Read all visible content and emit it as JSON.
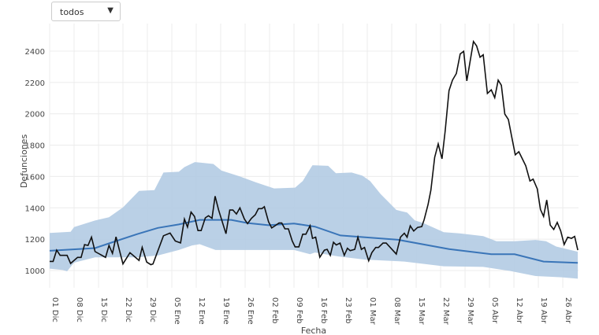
{
  "filter": {
    "selected": "todos",
    "arrow": "▼"
  },
  "chart_data": {
    "type": "line",
    "title": "",
    "xlabel": "Fecha",
    "ylabel": "Defunciones",
    "ylim": [
      900,
      2500
    ],
    "yticks": [
      1000,
      1200,
      1400,
      1600,
      1800,
      2000,
      2200,
      2400
    ],
    "x_unit": "days since 01 Dic",
    "xlim": [
      0,
      151.5
    ],
    "xticks": [
      {
        "day": 0,
        "label": "01 Dic"
      },
      {
        "day": 7,
        "label": "08 Dic"
      },
      {
        "day": 14,
        "label": "15 Dic"
      },
      {
        "day": 21,
        "label": "22 Dic"
      },
      {
        "day": 28,
        "label": "29 Dic"
      },
      {
        "day": 35,
        "label": "05 Ene"
      },
      {
        "day": 42,
        "label": "12 Ene"
      },
      {
        "day": 49,
        "label": "19 Ene"
      },
      {
        "day": 56,
        "label": "26 Ene"
      },
      {
        "day": 63,
        "label": "02 Feb"
      },
      {
        "day": 70,
        "label": "09 Feb"
      },
      {
        "day": 77,
        "label": "16 Feb"
      },
      {
        "day": 84,
        "label": "23 Feb"
      },
      {
        "day": 91,
        "label": "01 Mar"
      },
      {
        "day": 98,
        "label": "08 Mar"
      },
      {
        "day": 105,
        "label": "15 Mar"
      },
      {
        "day": 112,
        "label": "22 Mar"
      },
      {
        "day": 119,
        "label": "29 Mar"
      },
      {
        "day": 126,
        "label": "05 Abr"
      },
      {
        "day": 133,
        "label": "12 Abr"
      },
      {
        "day": 140,
        "label": "19 Abr"
      },
      {
        "day": 147,
        "label": "26 Abr"
      }
    ],
    "grid": true,
    "colors": {
      "observed": "#111111",
      "expected": "#3a75b8",
      "band": "#b3cbe3"
    },
    "series": [
      {
        "name": "observed",
        "points": [
          [
            0,
            1058
          ],
          [
            1,
            1058
          ],
          [
            2,
            1130
          ],
          [
            3,
            1097
          ],
          [
            5,
            1097
          ],
          [
            6,
            1045
          ],
          [
            8,
            1084
          ],
          [
            9,
            1084
          ],
          [
            10,
            1165
          ],
          [
            11,
            1160
          ],
          [
            12,
            1213
          ],
          [
            13,
            1121
          ],
          [
            16,
            1084
          ],
          [
            17,
            1160
          ],
          [
            18,
            1109
          ],
          [
            19,
            1215
          ],
          [
            21,
            1042
          ],
          [
            23,
            1114
          ],
          [
            25,
            1076
          ],
          [
            25.6,
            1064
          ],
          [
            26.5,
            1148
          ],
          [
            27.8,
            1054
          ],
          [
            29,
            1037
          ],
          [
            29.6,
            1042
          ],
          [
            32.6,
            1222
          ],
          [
            34.5,
            1239
          ],
          [
            36,
            1188
          ],
          [
            37.5,
            1176
          ],
          [
            38.6,
            1328
          ],
          [
            39.5,
            1277
          ],
          [
            40.5,
            1373
          ],
          [
            41.5,
            1345
          ],
          [
            42.5,
            1255
          ],
          [
            43.4,
            1255
          ],
          [
            44.6,
            1336
          ],
          [
            45.5,
            1350
          ],
          [
            46.5,
            1333
          ],
          [
            47.4,
            1474
          ],
          [
            48.4,
            1386
          ],
          [
            50.5,
            1235
          ],
          [
            51.6,
            1386
          ],
          [
            52.5,
            1386
          ],
          [
            53.5,
            1361
          ],
          [
            54.5,
            1400
          ],
          [
            55.8,
            1328
          ],
          [
            56.7,
            1299
          ],
          [
            57.8,
            1333
          ],
          [
            58.9,
            1356
          ],
          [
            59.8,
            1395
          ],
          [
            60.8,
            1395
          ],
          [
            61.5,
            1407
          ],
          [
            62.7,
            1311
          ],
          [
            63.6,
            1272
          ],
          [
            64.6,
            1286
          ],
          [
            65.7,
            1303
          ],
          [
            66.5,
            1303
          ],
          [
            67.4,
            1266
          ],
          [
            68.4,
            1266
          ],
          [
            69.5,
            1188
          ],
          [
            70.3,
            1151
          ],
          [
            71.4,
            1151
          ],
          [
            72.5,
            1232
          ],
          [
            73.4,
            1232
          ],
          [
            74.6,
            1286
          ],
          [
            75.3,
            1205
          ],
          [
            76.2,
            1213
          ],
          [
            77.4,
            1085
          ],
          [
            78.7,
            1130
          ],
          [
            79.5,
            1135
          ],
          [
            80.4,
            1097
          ],
          [
            81.3,
            1180
          ],
          [
            82.1,
            1163
          ],
          [
            83.2,
            1175
          ],
          [
            84.4,
            1097
          ],
          [
            85.3,
            1142
          ],
          [
            86.1,
            1127
          ],
          [
            87.4,
            1135
          ],
          [
            88.3,
            1213
          ],
          [
            89.3,
            1135
          ],
          [
            90.2,
            1147
          ],
          [
            91.4,
            1062
          ],
          [
            92.3,
            1114
          ],
          [
            93.4,
            1147
          ],
          [
            94.2,
            1147
          ],
          [
            95.5,
            1175
          ],
          [
            96.4,
            1175
          ],
          [
            99.3,
            1105
          ],
          [
            100.5,
            1213
          ],
          [
            101.6,
            1238
          ],
          [
            102.4,
            1213
          ],
          [
            103.3,
            1285
          ],
          [
            104.3,
            1252
          ],
          [
            105.4,
            1275
          ],
          [
            106.6,
            1280
          ],
          [
            107.3,
            1325
          ],
          [
            108.4,
            1421
          ],
          [
            109.2,
            1513
          ],
          [
            110.3,
            1722
          ],
          [
            111.3,
            1808
          ],
          [
            112.4,
            1713
          ],
          [
            113.3,
            1889
          ],
          [
            114.4,
            2148
          ],
          [
            115.4,
            2215
          ],
          [
            116.5,
            2257
          ],
          [
            117.6,
            2382
          ],
          [
            118.6,
            2399
          ],
          [
            119.5,
            2210
          ],
          [
            121.4,
            2461
          ],
          [
            122.3,
            2433
          ],
          [
            123.3,
            2361
          ],
          [
            124.2,
            2377
          ],
          [
            125.4,
            2130
          ],
          [
            126.5,
            2153
          ],
          [
            127.5,
            2103
          ],
          [
            128.5,
            2215
          ],
          [
            129.4,
            2182
          ],
          [
            130.4,
            1998
          ],
          [
            131.4,
            1964
          ],
          [
            132.5,
            1839
          ],
          [
            133.4,
            1738
          ],
          [
            134.4,
            1758
          ],
          [
            135.4,
            1713
          ],
          [
            136.4,
            1668
          ],
          [
            137.6,
            1571
          ],
          [
            138.5,
            1583
          ],
          [
            139.7,
            1521
          ],
          [
            140.6,
            1390
          ],
          [
            141.5,
            1345
          ],
          [
            142.4,
            1450
          ],
          [
            143.4,
            1290
          ],
          [
            144.4,
            1262
          ],
          [
            145.4,
            1307
          ],
          [
            146.4,
            1253
          ],
          [
            147.4,
            1166
          ],
          [
            148.4,
            1213
          ],
          [
            149.5,
            1205
          ],
          [
            150.4,
            1218
          ],
          [
            151.3,
            1130
          ]
        ]
      },
      {
        "name": "expected",
        "points": [
          [
            0,
            1126
          ],
          [
            13,
            1143
          ],
          [
            17,
            1173
          ],
          [
            25,
            1232
          ],
          [
            31,
            1272
          ],
          [
            37,
            1294
          ],
          [
            43,
            1323
          ],
          [
            52,
            1323
          ],
          [
            56.7,
            1303
          ],
          [
            62.7,
            1289
          ],
          [
            70,
            1300
          ],
          [
            76,
            1280
          ],
          [
            83.3,
            1224
          ],
          [
            99.8,
            1196
          ],
          [
            114.4,
            1137
          ],
          [
            126.5,
            1104
          ],
          [
            133.2,
            1104
          ],
          [
            141.5,
            1057
          ],
          [
            151.3,
            1049
          ]
        ]
      },
      {
        "name": "upper",
        "points": [
          [
            0,
            1240
          ],
          [
            6,
            1247
          ],
          [
            7,
            1277
          ],
          [
            13,
            1319
          ],
          [
            17,
            1340
          ],
          [
            21,
            1403
          ],
          [
            25.6,
            1508
          ],
          [
            30,
            1513
          ],
          [
            32.6,
            1625
          ],
          [
            37,
            1630
          ],
          [
            38.6,
            1660
          ],
          [
            41.6,
            1692
          ],
          [
            46.9,
            1680
          ],
          [
            49.2,
            1638
          ],
          [
            54.5,
            1600
          ],
          [
            59,
            1563
          ],
          [
            64.3,
            1524
          ],
          [
            70.3,
            1529
          ],
          [
            72.5,
            1571
          ],
          [
            74.8,
            1655
          ],
          [
            75.3,
            1672
          ],
          [
            79.8,
            1668
          ],
          [
            82,
            1621
          ],
          [
            86.5,
            1625
          ],
          [
            89.6,
            1605
          ],
          [
            91.8,
            1571
          ],
          [
            94.8,
            1488
          ],
          [
            99.3,
            1387
          ],
          [
            102.4,
            1370
          ],
          [
            104.6,
            1320
          ],
          [
            106.9,
            1304
          ],
          [
            112.9,
            1245
          ],
          [
            117.4,
            1237
          ],
          [
            124.2,
            1220
          ],
          [
            128,
            1187
          ],
          [
            133.2,
            1187
          ],
          [
            139.2,
            1195
          ],
          [
            142.2,
            1187
          ],
          [
            145.1,
            1153
          ],
          [
            151.3,
            1120
          ]
        ]
      },
      {
        "name": "lower",
        "points": [
          [
            0,
            1012
          ],
          [
            3.8,
            1003
          ],
          [
            5,
            995
          ],
          [
            7,
            1050
          ],
          [
            13,
            1084
          ],
          [
            25,
            1084
          ],
          [
            31,
            1096
          ],
          [
            37,
            1131
          ],
          [
            40.8,
            1160
          ],
          [
            43,
            1168
          ],
          [
            47.5,
            1131
          ],
          [
            55,
            1131
          ],
          [
            70,
            1131
          ],
          [
            74.6,
            1104
          ],
          [
            76,
            1115
          ],
          [
            82.8,
            1090
          ],
          [
            90.3,
            1070
          ],
          [
            101.6,
            1057
          ],
          [
            112.9,
            1027
          ],
          [
            124.2,
            1023
          ],
          [
            131.7,
            998
          ],
          [
            139.2,
            965
          ],
          [
            146.7,
            957
          ],
          [
            151.3,
            948
          ]
        ]
      }
    ]
  }
}
